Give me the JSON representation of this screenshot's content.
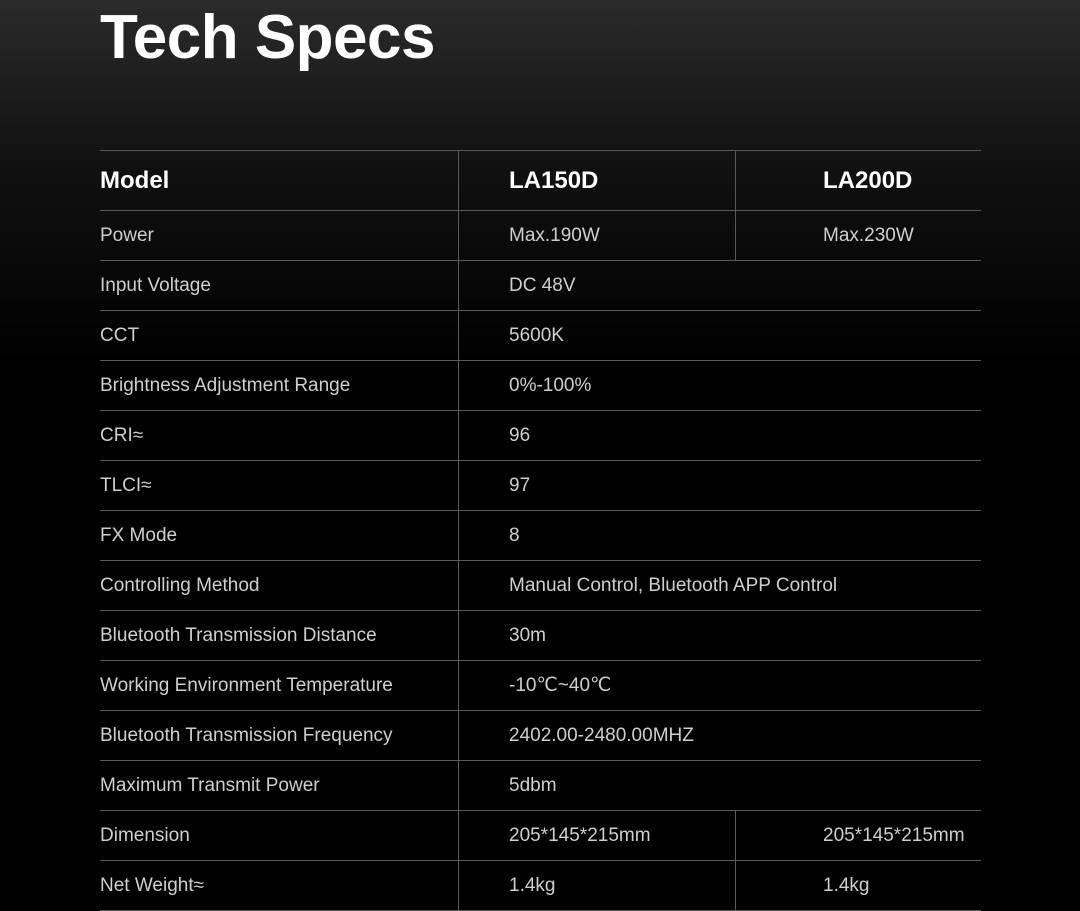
{
  "title": "Tech Specs",
  "header": {
    "label": "Model",
    "models": [
      "LA150D",
      "LA200D"
    ]
  },
  "rows": [
    {
      "label": "Power",
      "values": [
        "Max.190W",
        "Max.230W"
      ]
    },
    {
      "label": "Input Voltage",
      "value": "DC 48V"
    },
    {
      "label": "CCT",
      "value": "5600K"
    },
    {
      "label": "Brightness Adjustment Range",
      "value": "0%-100%"
    },
    {
      "label": "CRI≈",
      "value": "96"
    },
    {
      "label": "TLCI≈",
      "value": "97"
    },
    {
      "label": "FX Mode",
      "value": "8"
    },
    {
      "label": "Controlling Method",
      "value": "Manual Control, Bluetooth APP Control"
    },
    {
      "label": "Bluetooth Transmission Distance",
      "value": "30m"
    },
    {
      "label": "Working Environment Temperature",
      "value": "-10℃~40℃"
    },
    {
      "label": "Bluetooth Transmission  Frequency",
      "value": "2402.00-2480.00MHZ"
    },
    {
      "label": "Maximum Transmit Power",
      "value": "5dbm"
    },
    {
      "label": "Dimension",
      "values": [
        "205*145*215mm",
        "205*145*215mm"
      ]
    },
    {
      "label": "Net Weight≈",
      "values": [
        "1.4kg",
        "1.4kg"
      ]
    }
  ]
}
